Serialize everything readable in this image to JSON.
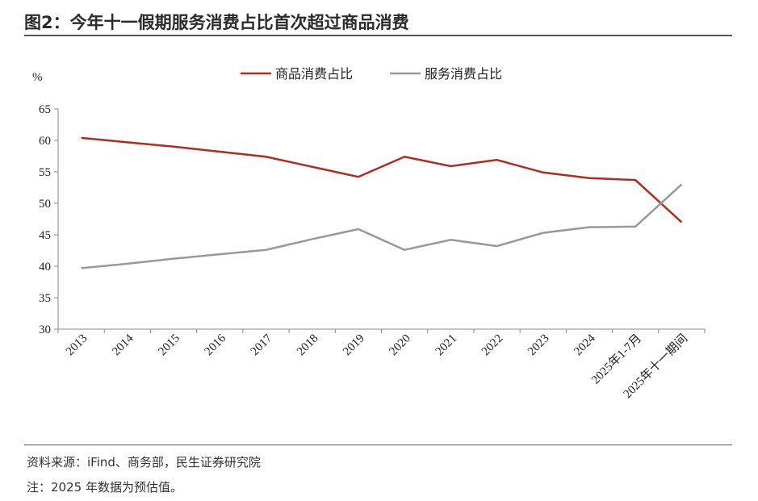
{
  "title": "图2：今年十一假期服务消费占比首次超过商品消费",
  "source": "资料来源：iFind、商务部，民生证券研究院",
  "note": "注：2025 年数据为预估值。",
  "chart_data": {
    "type": "line",
    "ylabel": "%",
    "ylim": [
      30,
      65
    ],
    "yticks": [
      30,
      35,
      40,
      45,
      50,
      55,
      60,
      65
    ],
    "grid": false,
    "legend": "top",
    "categories": [
      "2013",
      "2014",
      "2015",
      "2016",
      "2017",
      "2018",
      "2019",
      "2020",
      "2021",
      "2022",
      "2023",
      "2024",
      "2025年1-7月",
      "2025年十一期间"
    ],
    "series": [
      {
        "name": "商品消费占比",
        "color": "#b22b1f",
        "values": [
          60.4,
          59.7,
          59.0,
          58.2,
          57.4,
          55.8,
          54.2,
          57.4,
          55.9,
          56.9,
          54.9,
          54.0,
          53.7,
          47.0
        ]
      },
      {
        "name": "服务消费占比",
        "color": "#999999",
        "values": [
          39.7,
          40.4,
          41.2,
          41.9,
          42.6,
          44.3,
          45.9,
          42.6,
          44.2,
          43.2,
          45.3,
          46.2,
          46.3,
          53.0
        ]
      }
    ]
  }
}
